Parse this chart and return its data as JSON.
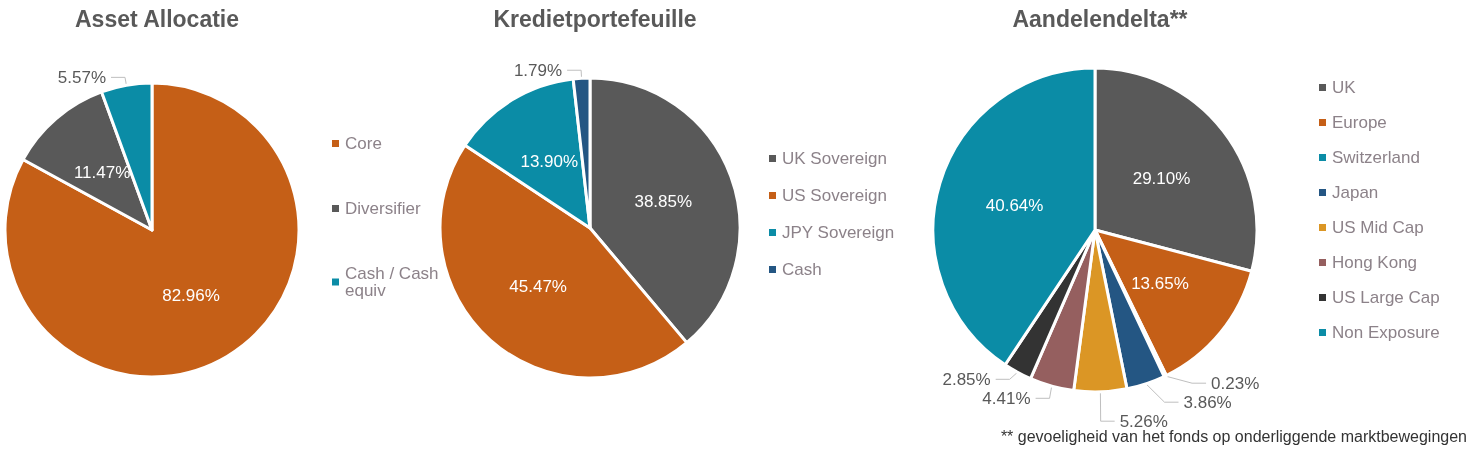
{
  "chart_data": [
    {
      "type": "pie",
      "title": "Asset Allocatie",
      "categories": [
        "Core",
        "Diversifier",
        "Cash / Cash equiv"
      ],
      "values": [
        82.96,
        11.47,
        5.57
      ],
      "colors": [
        "#c55f17",
        "#595959",
        "#0b8ca6"
      ],
      "value_labels": [
        "82.96%",
        "11.47%",
        "5.57%"
      ],
      "legend": "right"
    },
    {
      "type": "pie",
      "title": "Kredietportefeuille",
      "categories": [
        "UK Sovereign",
        "US Sovereign",
        "JPY Sovereign",
        "Cash"
      ],
      "values": [
        38.85,
        45.47,
        13.9,
        1.79
      ],
      "colors": [
        "#595959",
        "#c55f17",
        "#0b8ca6",
        "#245683"
      ],
      "value_labels": [
        "38.85%",
        "45.47%",
        "13.90%",
        "1.79%"
      ],
      "legend": "right"
    },
    {
      "type": "pie",
      "title": "Aandelendelta**",
      "categories": [
        "UK",
        "Europe",
        "Switzerland",
        "Japan",
        "US Mid Cap",
        "Hong Kong",
        "US Large Cap",
        "Non Exposure"
      ],
      "values": [
        29.1,
        13.65,
        0.23,
        3.86,
        5.26,
        4.41,
        2.85,
        40.64
      ],
      "colors": [
        "#595959",
        "#c55f17",
        "#0b8ca6",
        "#245683",
        "#db9625",
        "#955f5f",
        "#333333",
        "#0b8ca6"
      ],
      "value_labels": [
        "29.10%",
        "13.65%",
        "0.23%",
        "3.86%",
        "5.26%",
        "4.41%",
        "2.85%",
        "40.64%"
      ],
      "legend": "right",
      "annotations": [
        "** gevoeligheid van het fonds op onderliggende marktbewegingen"
      ]
    }
  ]
}
